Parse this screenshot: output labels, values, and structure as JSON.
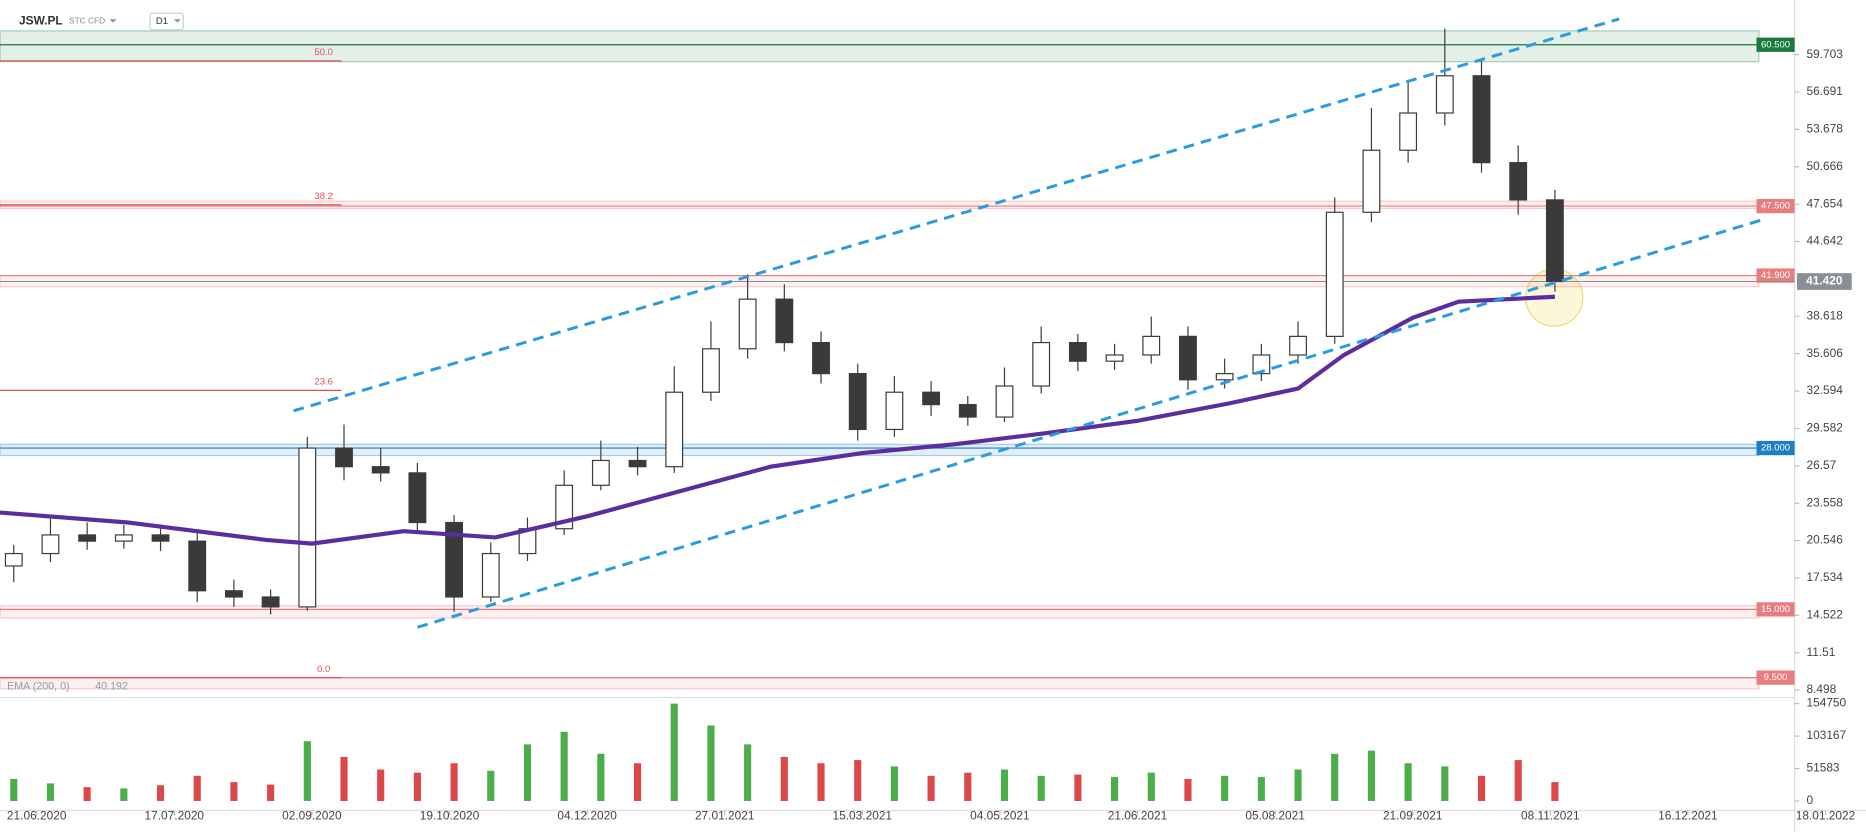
{
  "chart_data": {
    "type": "candlestick",
    "symbol": "JSW.PL",
    "instrument": "STC CFD",
    "interval": "D1",
    "xlim": [
      -8,
      383
    ],
    "ylim": [
      8.0,
      64.1
    ],
    "xticks": [
      {
        "value": 0,
        "label": "21.06.2020"
      },
      {
        "value": 30,
        "label": "17.07.2020"
      },
      {
        "value": 60,
        "label": "02.09.2020"
      },
      {
        "value": 90,
        "label": "19.10.2020"
      },
      {
        "value": 120,
        "label": "04.12.2020"
      },
      {
        "value": 150,
        "label": "27.01.2021"
      },
      {
        "value": 180,
        "label": "15.03.2021"
      },
      {
        "value": 210,
        "label": "04.05.2021"
      },
      {
        "value": 240,
        "label": "21.06.2021"
      },
      {
        "value": 270,
        "label": "05.08.2021"
      },
      {
        "value": 300,
        "label": "21.09.2021"
      },
      {
        "value": 330,
        "label": "08.11.2021"
      },
      {
        "value": 360,
        "label": "16.12.2021"
      },
      {
        "value": 390,
        "label": "18.01.2022"
      }
    ],
    "yticks": [
      59.703,
      56.691,
      53.678,
      50.666,
      47.654,
      44.642,
      38.618,
      35.606,
      32.594,
      29.582,
      26.57,
      23.558,
      20.546,
      17.534,
      14.522,
      11.51,
      8.498
    ],
    "candles": {
      "x": [
        -5,
        3,
        11,
        19,
        27,
        35,
        43,
        51,
        59,
        67,
        75,
        83,
        91,
        99,
        107,
        115,
        123,
        131,
        139,
        147,
        155,
        163,
        171,
        179,
        187,
        195,
        203,
        211,
        219,
        227,
        235,
        243,
        251,
        259,
        267,
        275,
        283,
        291,
        299,
        307,
        315,
        323,
        331
      ],
      "open": [
        18.5,
        19.5,
        21,
        20.5,
        21,
        20.5,
        16.5,
        16,
        15.2,
        28,
        26.5,
        26,
        22,
        16,
        19.5,
        21.5,
        25,
        27,
        26.5,
        32.5,
        36,
        40,
        36.5,
        34,
        29.5,
        32.5,
        31.5,
        30.5,
        33,
        36.5,
        35,
        35.5,
        37,
        33.5,
        34,
        35.5,
        37,
        47,
        52,
        55,
        58,
        51,
        48
      ],
      "high": [
        20.2,
        22.3,
        22,
        21.8,
        21.6,
        21.2,
        17.4,
        16.6,
        28.9,
        29.9,
        28,
        26.8,
        22.6,
        20.4,
        22.4,
        26.2,
        28.6,
        28.1,
        34.6,
        38.2,
        42,
        41.2,
        37.4,
        34.8,
        33.8,
        33.4,
        32.2,
        34.5,
        37.8,
        37.2,
        36.4,
        38.6,
        37.8,
        35.2,
        36.4,
        38.2,
        48.2,
        55.4,
        57.6,
        61.8,
        59.3,
        52.4,
        48.8
      ],
      "low": [
        17.2,
        18.8,
        19.8,
        19.9,
        19.7,
        15.6,
        15.2,
        14.6,
        14.9,
        25.4,
        25.3,
        21.2,
        14.8,
        15.6,
        18.9,
        21,
        24.6,
        25.8,
        26,
        31.8,
        35.2,
        35.8,
        33.2,
        28.6,
        28.9,
        30.6,
        29.8,
        30.1,
        32.4,
        34.2,
        34.3,
        34.8,
        32.7,
        32.8,
        33.4,
        34.8,
        36.4,
        46.2,
        51,
        54,
        50.2,
        46.8,
        40.6
      ],
      "close": [
        19.5,
        21,
        20.5,
        21,
        20.5,
        16.5,
        16,
        15.2,
        28,
        26.5,
        26,
        22,
        16,
        19.5,
        21.5,
        25,
        27,
        26.5,
        32.5,
        36,
        40,
        36.5,
        34,
        29.5,
        32.5,
        31.5,
        30.5,
        33,
        36.5,
        35,
        35.5,
        37,
        33.5,
        34,
        35.5,
        37,
        47,
        52,
        55,
        58,
        51,
        48,
        41.42
      ],
      "up_color": "#ffffff",
      "down_color": "#3a3a3a"
    },
    "last_price": {
      "value": 41.42,
      "label": "41.420",
      "color": "#8a8f96"
    },
    "volume": {
      "values": [
        35000,
        28000,
        22000,
        20000,
        25000,
        40000,
        30000,
        26000,
        95000,
        70000,
        50000,
        45000,
        60000,
        48000,
        90000,
        110000,
        75000,
        60000,
        154750,
        120000,
        90000,
        70000,
        60000,
        65000,
        55000,
        40000,
        45000,
        50000,
        40000,
        42000,
        38000,
        45000,
        35000,
        40000,
        38000,
        50000,
        75000,
        80000,
        60000,
        55000,
        40000,
        65000,
        30000
      ],
      "ylim": [
        0,
        157000
      ],
      "yticks": [
        154750,
        103167,
        51583,
        0
      ],
      "up_color": "#2ca02c",
      "down_color": "#d62728"
    },
    "ema": {
      "label": "EMA (200, 0)",
      "last": 40.192,
      "color": "#5b2d9e",
      "x": [
        -8,
        20,
        50,
        60,
        80,
        100,
        120,
        140,
        160,
        180,
        200,
        220,
        240,
        260,
        275,
        285,
        300,
        310,
        331
      ],
      "values": [
        22.8,
        22,
        20.6,
        20.3,
        21.3,
        20.8,
        22.5,
        24.5,
        26.5,
        27.6,
        28.3,
        29.2,
        30.2,
        31.6,
        32.8,
        35.5,
        38.5,
        39.8,
        40.192
      ]
    },
    "levels": [
      {
        "value": 60.5,
        "label": "60.500",
        "color": "#1a7a3c",
        "band": [
          59.13,
          61.62
        ]
      },
      {
        "value": 47.5,
        "label": "47.500",
        "color": "#e87d7d",
        "band": [
          47.3,
          47.9
        ]
      },
      {
        "value": 41.9,
        "label": "41.900",
        "color": "#e87d7d",
        "band": [
          41.0,
          41.9
        ]
      },
      {
        "value": 28.0,
        "label": "28.000",
        "color": "#1c7ec4",
        "band": [
          27.4,
          28.3
        ]
      },
      {
        "value": 15.0,
        "label": "15.000",
        "color": "#e87d7d",
        "band": [
          14.3,
          15.3
        ]
      },
      {
        "value": 9.5,
        "label": "9.500",
        "color": "#e87d7d",
        "band": [
          8.6,
          9.5
        ]
      }
    ],
    "fib_levels": [
      {
        "label": "50.0",
        "value": 59.2
      },
      {
        "label": "38.2",
        "value": 47.6
      },
      {
        "label": "23.6",
        "value": 32.65
      },
      {
        "label": "0.0",
        "value": 9.5
      }
    ],
    "trendlines": [
      {
        "x": [
          56,
          345
        ],
        "y": [
          31.0,
          62.58
        ]
      },
      {
        "x": [
          83,
          376
        ],
        "y": [
          13.56,
          46.37
        ]
      }
    ],
    "trendline_color": "#2b9be0"
  }
}
